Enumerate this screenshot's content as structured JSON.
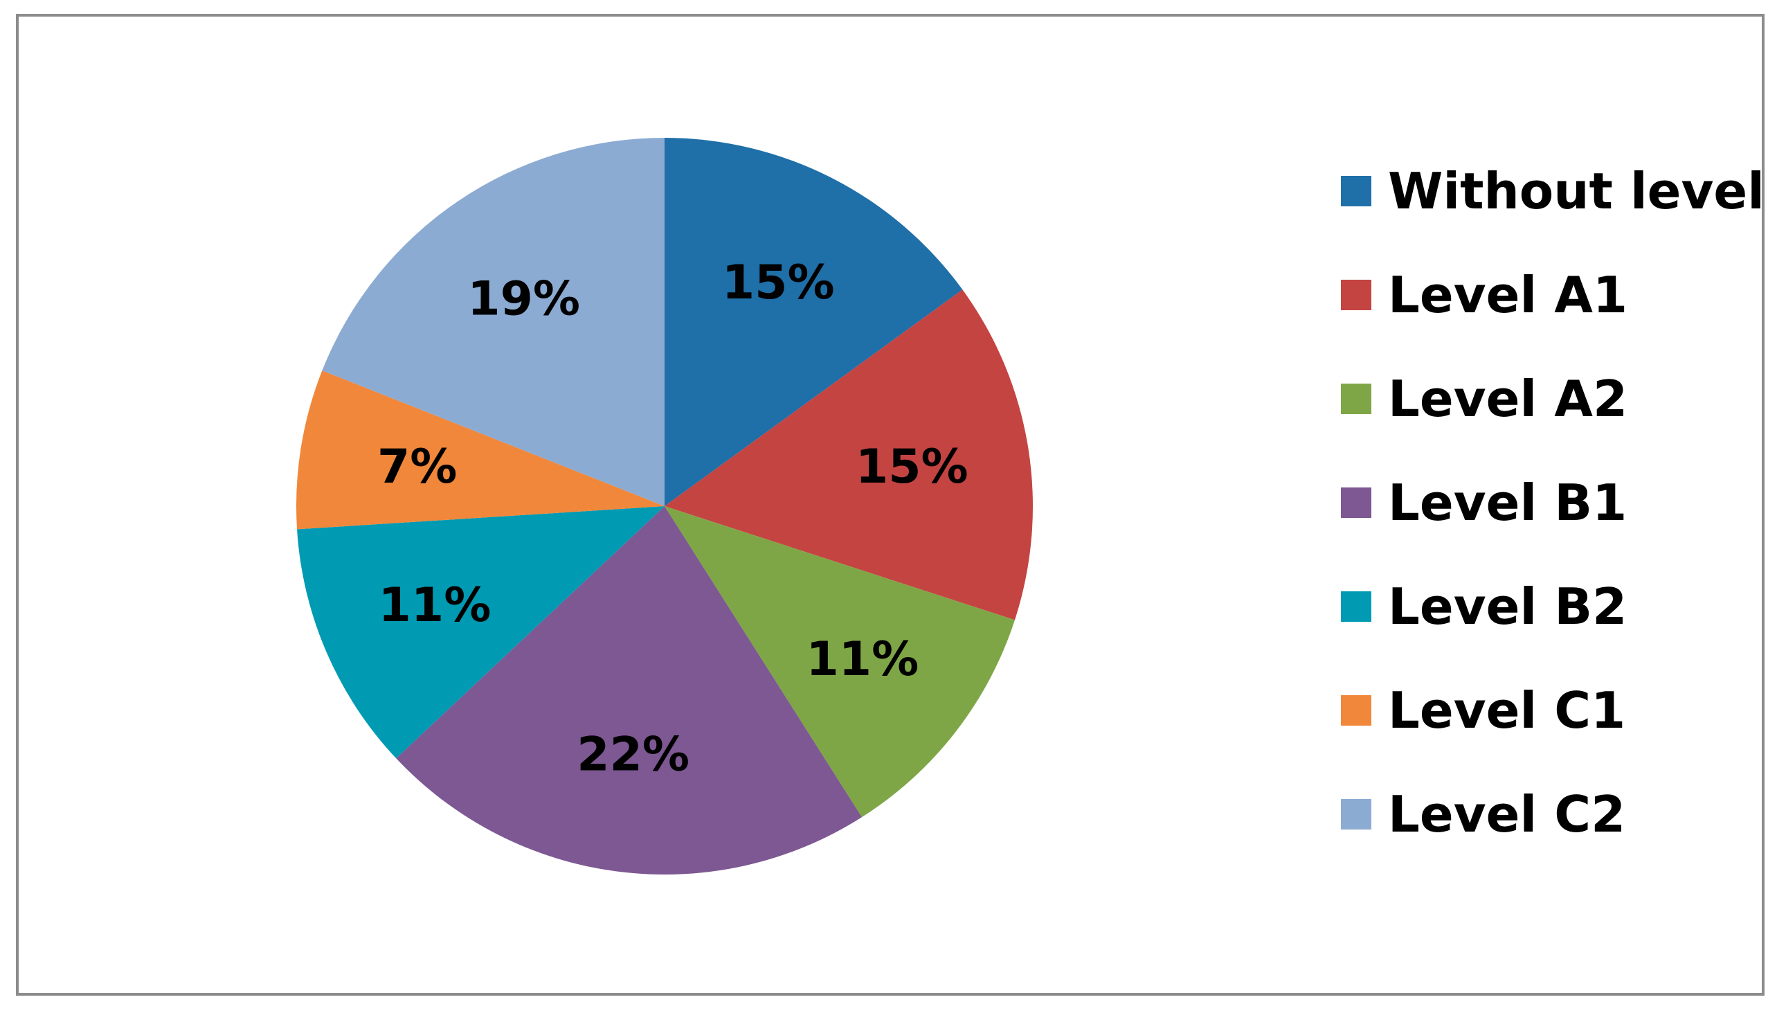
{
  "chart_data": {
    "type": "pie",
    "title": "",
    "categories": [
      "Without level",
      "Level A1",
      "Level A2",
      "Level B1",
      "Level B2",
      "Level C1",
      "Level C2"
    ],
    "values": [
      15,
      15,
      11,
      22,
      11,
      7,
      19
    ],
    "labels": [
      "15%",
      "15%",
      "11%",
      "22%",
      "11%",
      "7%",
      "19%"
    ],
    "colors": [
      "#1F6FA8",
      "#C44442",
      "#7FA646",
      "#7D5893",
      "#009AB3",
      "#F0873A",
      "#8CABD3"
    ],
    "start_angle_deg": 0,
    "direction": "clockwise",
    "legend": "right",
    "border_color": "#8C8C8C"
  }
}
